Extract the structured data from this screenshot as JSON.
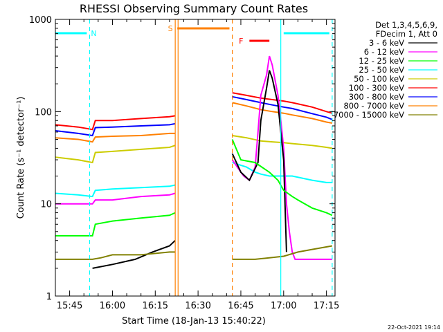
{
  "chart_data": {
    "type": "line",
    "title": "RHESSI Observing Summary Count Rates",
    "xlabel": "Start Time (18-Jan-13 15:40:22)",
    "ylabel": "Count Rate (s⁻¹ detector⁻¹)",
    "y_scale": "log",
    "ylim": [
      1,
      1000
    ],
    "xlim": [
      "15:40",
      "17:18"
    ],
    "x_ticks": [
      "15:45",
      "16:00",
      "16:15",
      "16:30",
      "16:45",
      "17:00",
      "17:15"
    ],
    "y_ticks": [
      "1",
      "10",
      "100",
      "1000"
    ],
    "legend_header": [
      "Det 1,3,4,5,6,9,",
      "FDecim 1, Att 0"
    ],
    "legend_position": "right",
    "series": [
      {
        "name": "3 - 6 keV",
        "color": "#000000"
      },
      {
        "name": "6 - 12 keV",
        "color": "#ff00ff"
      },
      {
        "name": "12 - 25 keV",
        "color": "#00ff00"
      },
      {
        "name": "25 - 50 keV",
        "color": "#00ffff"
      },
      {
        "name": "50 - 100 keV",
        "color": "#cccc00"
      },
      {
        "name": "100 - 300 keV",
        "color": "#ff0000"
      },
      {
        "name": "300 - 800 keV",
        "color": "#0000ff"
      },
      {
        "name": "800 - 7000 keV",
        "color": "#ff8000"
      },
      {
        "name": "7000 - 15000 keV",
        "color": "#808000"
      }
    ],
    "segments": [
      {
        "series": "100 - 300 keV",
        "x": [
          "15:40",
          "15:48",
          "15:53",
          "15:54",
          "16:00",
          "16:10",
          "16:20",
          "16:22"
        ],
        "y": [
          72,
          68,
          64,
          80,
          80,
          84,
          88,
          90
        ]
      },
      {
        "series": "100 - 300 keV",
        "x": [
          "16:42",
          "16:47",
          "16:52",
          "16:56",
          "17:00",
          "17:03",
          "17:10",
          "17:15",
          "17:17"
        ],
        "y": [
          160,
          150,
          140,
          135,
          130,
          125,
          112,
          100,
          96
        ]
      },
      {
        "series": "300 - 800 keV",
        "x": [
          "15:40",
          "15:48",
          "15:53",
          "15:54",
          "16:00",
          "16:10",
          "16:20",
          "16:22"
        ],
        "y": [
          62,
          58,
          55,
          67,
          68,
          70,
          72,
          74
        ]
      },
      {
        "series": "300 - 800 keV",
        "x": [
          "16:42",
          "16:47",
          "16:52",
          "16:56",
          "17:00",
          "17:03",
          "17:10",
          "17:15",
          "17:17"
        ],
        "y": [
          145,
          135,
          125,
          118,
          112,
          108,
          95,
          87,
          82
        ]
      },
      {
        "series": "800 - 7000 keV",
        "x": [
          "15:40",
          "15:48",
          "15:53",
          "15:54",
          "16:00",
          "16:10",
          "16:20",
          "16:22"
        ],
        "y": [
          52,
          50,
          47,
          53,
          54,
          55,
          58,
          58
        ]
      },
      {
        "series": "800 - 7000 keV",
        "x": [
          "16:42",
          "16:47",
          "16:52",
          "16:56",
          "17:00",
          "17:03",
          "17:10",
          "17:15",
          "17:17"
        ],
        "y": [
          125,
          115,
          105,
          100,
          96,
          92,
          84,
          77,
          75
        ]
      },
      {
        "series": "50 - 100 keV",
        "x": [
          "15:40",
          "15:48",
          "15:53",
          "15:54",
          "16:00",
          "16:10",
          "16:20",
          "16:22"
        ],
        "y": [
          32,
          30,
          28,
          36,
          37,
          39,
          41,
          43
        ]
      },
      {
        "series": "50 - 100 keV",
        "x": [
          "16:42",
          "16:47",
          "16:52",
          "16:56",
          "17:00",
          "17:03",
          "17:10",
          "17:15",
          "17:17"
        ],
        "y": [
          55,
          52,
          48,
          47,
          46,
          45,
          43,
          41,
          40
        ]
      },
      {
        "series": "25 - 50 keV",
        "x": [
          "15:40",
          "15:48",
          "15:53",
          "15:54",
          "16:00",
          "16:10",
          "16:20",
          "16:22"
        ],
        "y": [
          13,
          12.5,
          12,
          14,
          14.5,
          15,
          15.5,
          16
        ]
      },
      {
        "series": "25 - 50 keV",
        "x": [
          "16:42",
          "16:47",
          "16:50",
          "16:52",
          "16:55",
          "17:00",
          "17:03",
          "17:10",
          "17:15",
          "17:17"
        ],
        "y": [
          28,
          25,
          22,
          21,
          20,
          20,
          20,
          18,
          17,
          17
        ]
      },
      {
        "series": "6 - 12 keV",
        "x": [
          "15:40",
          "15:53",
          "15:54",
          "16:00",
          "16:10",
          "16:20",
          "16:22"
        ],
        "y": [
          10,
          10,
          11,
          11,
          12,
          12.5,
          13
        ]
      },
      {
        "series": "6 - 12 keV",
        "x": [
          "16:42",
          "16:45",
          "16:46",
          "16:48",
          "16:50",
          "16:51",
          "16:52",
          "16:54",
          "16:55",
          "16:56",
          "16:58",
          "16:59",
          "17:00",
          "17:01",
          "17:02",
          "17:03",
          "17:04",
          "17:17"
        ],
        "y": [
          30,
          22,
          20,
          18,
          25,
          60,
          150,
          250,
          400,
          320,
          150,
          80,
          40,
          10,
          5,
          3,
          2.5,
          2.5
        ]
      },
      {
        "series": "3 - 6 keV",
        "x": [
          "15:53",
          "16:00",
          "16:08",
          "16:14",
          "16:20",
          "16:22"
        ],
        "y": [
          2,
          2.2,
          2.5,
          3,
          3.5,
          4
        ]
      },
      {
        "series": "3 - 6 keV",
        "x": [
          "16:42",
          "16:45",
          "16:48",
          "16:51",
          "16:52",
          "16:54",
          "16:55",
          "16:56",
          "16:58",
          "16:59",
          "17:00",
          "17:01"
        ],
        "y": [
          35,
          22,
          18,
          28,
          80,
          180,
          280,
          230,
          120,
          60,
          30,
          3
        ]
      },
      {
        "series": "12 - 25 keV",
        "x": [
          "15:40",
          "15:53",
          "15:54",
          "16:00",
          "16:10",
          "16:20",
          "16:22"
        ],
        "y": [
          4.5,
          4.5,
          6,
          6.5,
          7,
          7.5,
          8
        ]
      },
      {
        "series": "12 - 25 keV",
        "x": [
          "16:42",
          "16:45",
          "16:50",
          "16:55",
          "16:58",
          "17:00",
          "17:03",
          "17:05",
          "17:10",
          "17:15",
          "17:17"
        ],
        "y": [
          50,
          30,
          28,
          22,
          18,
          14,
          12,
          11,
          9,
          8,
          7.5
        ]
      },
      {
        "series": "7000 - 15000 keV",
        "x": [
          "15:40",
          "15:53",
          "15:56",
          "16:00",
          "16:10",
          "16:20",
          "16:22"
        ],
        "y": [
          2.5,
          2.5,
          2.6,
          2.8,
          2.8,
          3,
          3
        ]
      },
      {
        "series": "7000 - 15000 keV",
        "x": [
          "16:42",
          "16:50",
          "17:00",
          "17:05",
          "17:10",
          "17:17"
        ],
        "y": [
          2.5,
          2.5,
          2.7,
          3,
          3.2,
          3.5
        ]
      }
    ],
    "attenuator_bars": [
      {
        "label": "N",
        "color": "#00ffff",
        "x_start": "15:40",
        "x_end": "15:51"
      },
      {
        "label": "",
        "color": "#00ffff",
        "x_start": "17:00",
        "x_end": "17:16"
      }
    ],
    "sun_bars": [
      {
        "label": "S",
        "color": "#ff8000",
        "x_start": "16:22",
        "x_end": "16:41"
      }
    ],
    "flare_bars": [
      {
        "label": "F",
        "color": "#ff0000",
        "x_start": "16:48",
        "x_end": "16:55"
      }
    ],
    "vertical_markers": [
      {
        "x": "15:52",
        "color": "#00ffff",
        "style": "dashed"
      },
      {
        "x": "16:22",
        "color": "#ff8000",
        "style": "solid"
      },
      {
        "x": "16:23",
        "color": "#ff8000",
        "style": "solid"
      },
      {
        "x": "16:42",
        "color": "#ff8000",
        "style": "dashed"
      },
      {
        "x": "16:59",
        "color": "#00ffff",
        "style": "solid"
      },
      {
        "x": "17:17",
        "color": "#00ffff",
        "style": "dashed"
      }
    ],
    "footer_stamp": "22-Oct-2021 19:14"
  }
}
